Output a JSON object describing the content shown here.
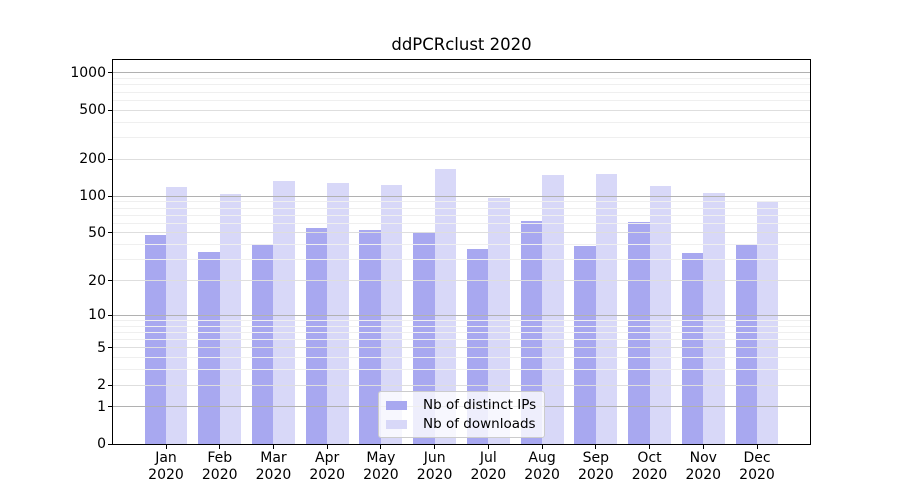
{
  "chart_data": {
    "type": "bar",
    "title": "ddPCRclust 2020",
    "categories": [
      "Jan 2020",
      "Feb 2020",
      "Mar 2020",
      "Apr 2020",
      "May 2020",
      "Jun 2020",
      "Jul 2020",
      "Aug 2020",
      "Sep 2020",
      "Oct 2020",
      "Nov 2020",
      "Dec 2020"
    ],
    "series": [
      {
        "name": "Nb of distinct IPs",
        "color": "#a8a8f0",
        "values": [
          48,
          35,
          40,
          55,
          53,
          51,
          37,
          63,
          39,
          61,
          34,
          40
        ]
      },
      {
        "name": "Nb of downloads",
        "color": "#d8d8f8",
        "values": [
          119,
          104,
          133,
          128,
          123,
          167,
          96,
          149,
          152,
          121,
          106,
          90
        ]
      }
    ],
    "xlabel": "",
    "ylabel": "",
    "y_scale": "log10(value+1)",
    "y_ticks": [
      0,
      1,
      2,
      5,
      10,
      20,
      50,
      100,
      200,
      500,
      1000
    ],
    "y_minor_ticks": [
      3,
      4,
      6,
      7,
      8,
      9,
      30,
      40,
      60,
      70,
      80,
      90,
      300,
      400,
      600,
      700,
      800,
      900
    ],
    "ylim": [
      0,
      1274
    ],
    "grid": true,
    "legend_position": "lower center",
    "colors": {
      "grid_decade": "#b1b1b1",
      "grid_major": "#dedede",
      "grid_minor": "#efefef",
      "spine": "#000000"
    }
  }
}
